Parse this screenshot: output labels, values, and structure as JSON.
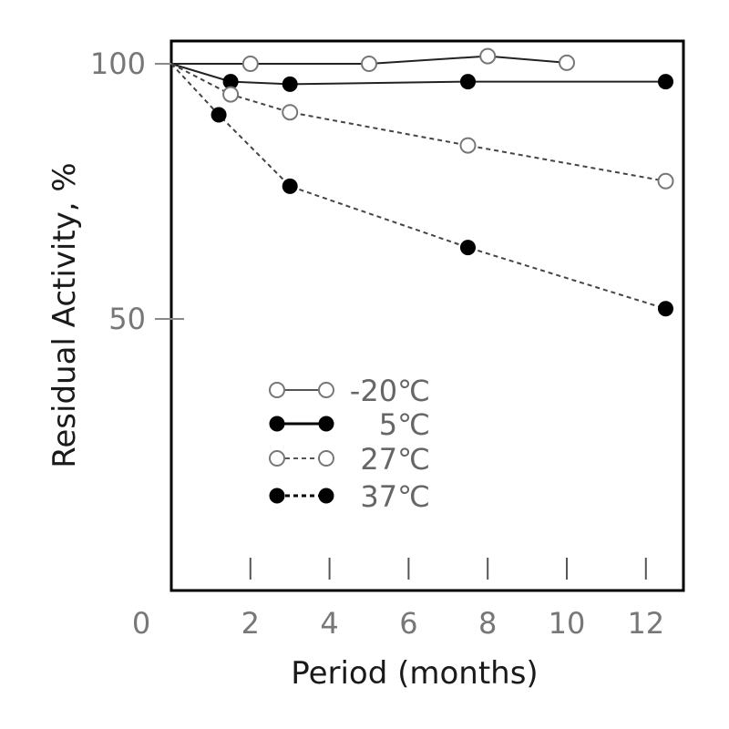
{
  "chart_data": {
    "type": "line",
    "xlabel": "Period (months)",
    "ylabel": "Residual Activity, %",
    "xlim": [
      0,
      13
    ],
    "ylim": [
      0,
      105
    ],
    "x_ticks": [
      0,
      2,
      4,
      6,
      8,
      10,
      12
    ],
    "y_ticks": [
      50,
      100
    ],
    "grid": false,
    "legend_position": "lower-left",
    "series": [
      {
        "name": "-20℃",
        "marker": "open-circle",
        "line": "solid",
        "x": [
          0,
          2,
          5,
          8,
          10
        ],
        "y": [
          100,
          100,
          100,
          101.5,
          100.2
        ]
      },
      {
        "name": "5℃",
        "marker": "filled-circle",
        "line": "solid",
        "x": [
          0,
          1.5,
          3,
          7.5,
          12.5
        ],
        "y": [
          100,
          96.5,
          96,
          96.5,
          96.5
        ]
      },
      {
        "name": "27℃",
        "marker": "open-circle",
        "line": "dashed",
        "x": [
          0,
          1.5,
          3,
          7.5,
          12.5
        ],
        "y": [
          100,
          94,
          90.5,
          84,
          77
        ]
      },
      {
        "name": "37℃",
        "marker": "filled-circle",
        "line": "dashed",
        "x": [
          0,
          1.2,
          3,
          7.5,
          12.5
        ],
        "y": [
          100,
          90,
          76,
          64,
          52
        ]
      }
    ]
  }
}
